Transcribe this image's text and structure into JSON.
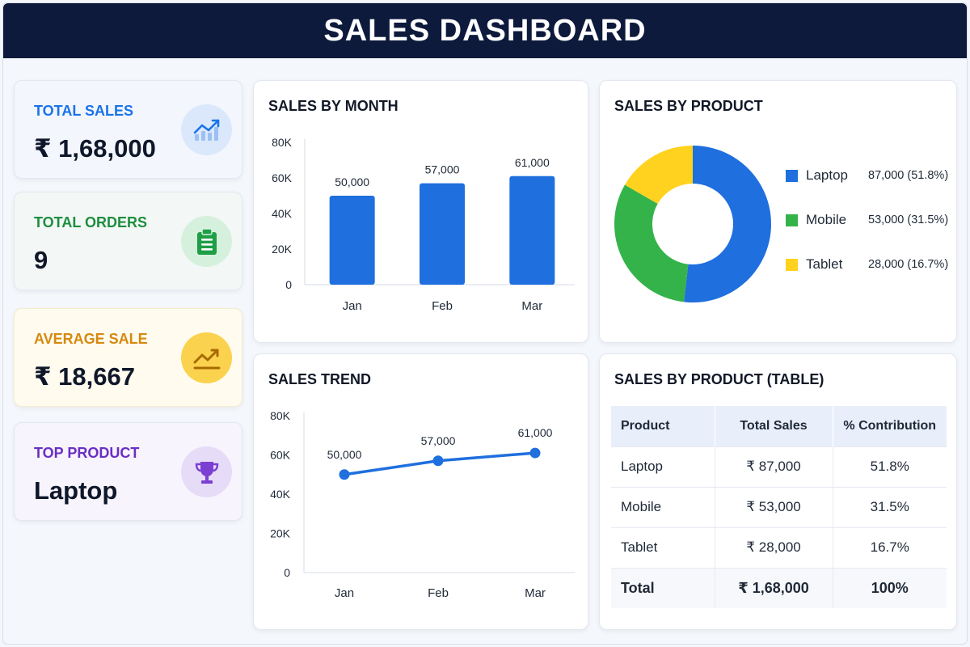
{
  "header": {
    "title": "SALES DASHBOARD"
  },
  "kpis": [
    {
      "label": "TOTAL SALES",
      "value": "₹ 1,68,000",
      "label_color": "#1a73e8",
      "icon": "trend-up-chart-icon"
    },
    {
      "label": "TOTAL ORDERS",
      "value": "9",
      "label_color": "#1e8e3e",
      "icon": "clipboard-icon"
    },
    {
      "label": "AVERAGE SALE",
      "value": "₹ 18,667",
      "label_color": "#d68910",
      "icon": "trend-up-icon"
    },
    {
      "label": "TOP PRODUCT",
      "value": "Laptop",
      "label_color": "#6a2fc4",
      "icon": "trophy-icon"
    }
  ],
  "colors": {
    "blue": "#1f6fde",
    "green": "#34b34a",
    "yellow": "#ffd21f",
    "navy": "#0d1a3c"
  },
  "panels": {
    "month": {
      "title": "SALES BY MONTH"
    },
    "product": {
      "title": "SALES BY PRODUCT"
    },
    "trend": {
      "title": "SALES TREND"
    },
    "table": {
      "title": "SALES BY PRODUCT (TABLE)"
    }
  },
  "chart_data": [
    {
      "type": "bar",
      "title": "SALES BY MONTH",
      "categories": [
        "Jan",
        "Feb",
        "Mar"
      ],
      "values": [
        50000,
        57000,
        61000
      ],
      "data_labels": [
        "50,000",
        "57,000",
        "61,000"
      ],
      "ylim": [
        0,
        80000
      ],
      "yticks": [
        0,
        20000,
        40000,
        60000,
        80000
      ],
      "ytick_labels": [
        "0",
        "20K",
        "40K",
        "60K",
        "80K"
      ],
      "color": "#1f6fde",
      "grid": false
    },
    {
      "type": "pie",
      "title": "SALES BY PRODUCT",
      "donut": true,
      "categories": [
        "Laptop",
        "Mobile",
        "Tablet"
      ],
      "values": [
        87000,
        53000,
        28000
      ],
      "value_labels": [
        "87,000 (51.8%)",
        "53,000 (31.5%)",
        "28,000 (16.7%)"
      ],
      "colors": [
        "#1f6fde",
        "#34b34a",
        "#ffd21f"
      ],
      "legend": "right"
    },
    {
      "type": "line",
      "title": "SALES TREND",
      "categories": [
        "Jan",
        "Feb",
        "Mar"
      ],
      "values": [
        50000,
        57000,
        61000
      ],
      "data_labels": [
        "50,000",
        "57,000",
        "61,000"
      ],
      "ylim": [
        0,
        80000
      ],
      "yticks": [
        0,
        20000,
        40000,
        60000,
        80000
      ],
      "ytick_labels": [
        "0",
        "20K",
        "40K",
        "60K",
        "80K"
      ],
      "color": "#1f6fde",
      "grid": false
    },
    {
      "type": "table",
      "title": "SALES BY PRODUCT (TABLE)",
      "columns": [
        "Product",
        "Total Sales",
        "% Contribution"
      ],
      "rows": [
        [
          "Laptop",
          "₹ 87,000",
          "51.8%"
        ],
        [
          "Mobile",
          "₹ 53,000",
          "31.5%"
        ],
        [
          "Tablet",
          "₹ 28,000",
          "16.7%"
        ]
      ],
      "total": [
        "Total",
        "₹ 1,68,000",
        "100%"
      ]
    }
  ]
}
